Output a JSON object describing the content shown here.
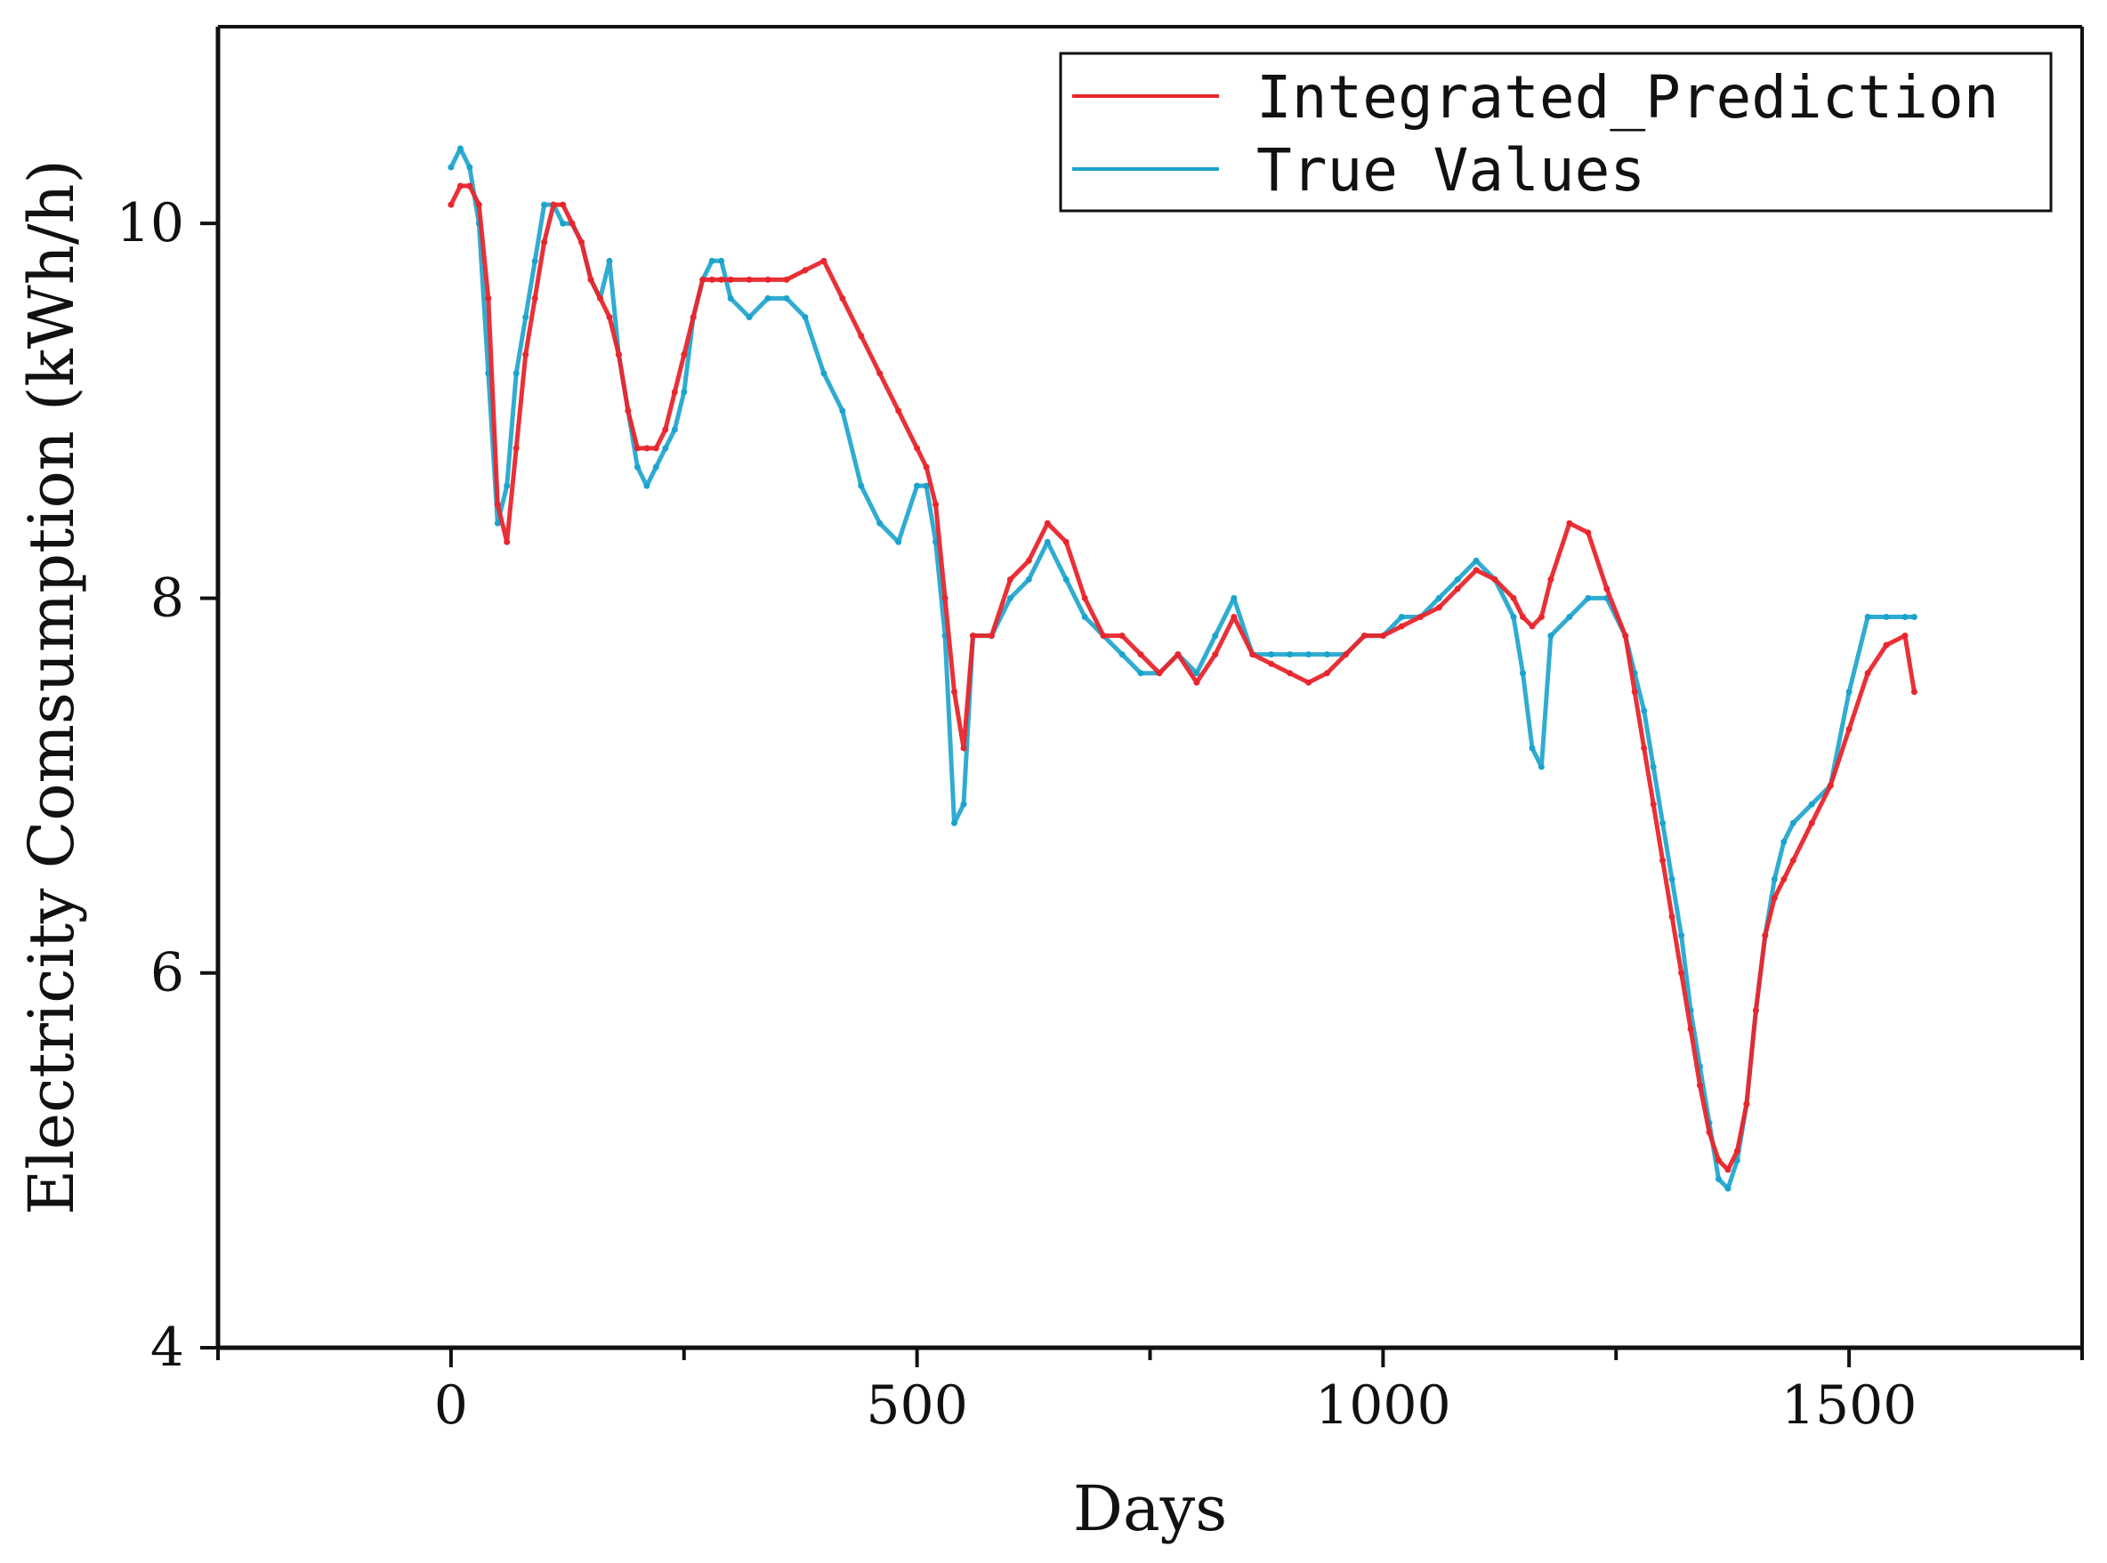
{
  "chart_data": {
    "type": "line",
    "title": "",
    "xlabel": "Days",
    "ylabel": "Electricity Comsumption (kWh/h)",
    "xlim": [
      -250,
      1750
    ],
    "ylim": [
      4,
      11.05
    ],
    "xticks": [
      0,
      500,
      1000,
      1500
    ],
    "yticks": [
      4,
      6,
      8,
      10
    ],
    "x_minor_ticks": [
      -250,
      250,
      750,
      1250,
      1750
    ],
    "grid": false,
    "legend_position": "top-right",
    "colors": {
      "Integrated_Prediction": "#e8262d",
      "True Values": "#1aa3cc",
      "frame": "#111111"
    },
    "series": [
      {
        "name": "True Values",
        "x": [
          0,
          10,
          20,
          30,
          40,
          50,
          60,
          70,
          80,
          90,
          100,
          110,
          120,
          130,
          140,
          150,
          160,
          170,
          180,
          190,
          200,
          210,
          220,
          230,
          240,
          250,
          260,
          270,
          280,
          290,
          300,
          320,
          340,
          360,
          380,
          400,
          420,
          440,
          460,
          480,
          500,
          510,
          520,
          530,
          540,
          550,
          560,
          580,
          600,
          620,
          640,
          660,
          680,
          700,
          720,
          740,
          760,
          780,
          800,
          820,
          840,
          860,
          880,
          900,
          920,
          940,
          960,
          980,
          1000,
          1020,
          1040,
          1060,
          1080,
          1100,
          1120,
          1140,
          1150,
          1160,
          1170,
          1180,
          1200,
          1220,
          1240,
          1260,
          1270,
          1280,
          1290,
          1300,
          1310,
          1320,
          1330,
          1340,
          1350,
          1360,
          1370,
          1380,
          1390,
          1400,
          1410,
          1420,
          1430,
          1440,
          1460,
          1480,
          1500,
          1520,
          1540,
          1560,
          1570
        ],
        "y": [
          10.3,
          10.4,
          10.3,
          10.0,
          9.2,
          8.4,
          8.6,
          9.2,
          9.5,
          9.8,
          10.1,
          10.1,
          10.0,
          10.0,
          9.9,
          9.7,
          9.6,
          9.8,
          9.3,
          9.0,
          8.7,
          8.6,
          8.7,
          8.8,
          8.9,
          9.1,
          9.5,
          9.7,
          9.8,
          9.8,
          9.6,
          9.5,
          9.6,
          9.6,
          9.5,
          9.2,
          9.0,
          8.6,
          8.4,
          8.3,
          8.6,
          8.6,
          8.3,
          7.8,
          6.8,
          6.9,
          7.8,
          7.8,
          8.0,
          8.1,
          8.3,
          8.1,
          7.9,
          7.8,
          7.7,
          7.6,
          7.6,
          7.7,
          7.6,
          7.8,
          8.0,
          7.7,
          7.7,
          7.7,
          7.7,
          7.7,
          7.7,
          7.8,
          7.8,
          7.9,
          7.9,
          8.0,
          8.1,
          8.2,
          8.1,
          7.9,
          7.6,
          7.2,
          7.1,
          7.8,
          7.9,
          8.0,
          8.0,
          7.8,
          7.6,
          7.4,
          7.1,
          6.8,
          6.5,
          6.2,
          5.8,
          5.5,
          5.2,
          4.9,
          4.85,
          5.0,
          5.3,
          5.8,
          6.2,
          6.5,
          6.7,
          6.8,
          6.9,
          7.0,
          7.5,
          7.9,
          7.9,
          7.9,
          7.9
        ]
      },
      {
        "name": "Integrated_Prediction",
        "x": [
          0,
          10,
          20,
          30,
          40,
          50,
          60,
          70,
          80,
          90,
          100,
          110,
          120,
          130,
          140,
          150,
          160,
          170,
          180,
          190,
          200,
          210,
          220,
          230,
          240,
          250,
          260,
          270,
          280,
          290,
          300,
          320,
          340,
          360,
          380,
          400,
          420,
          440,
          460,
          480,
          500,
          510,
          520,
          530,
          540,
          550,
          560,
          580,
          600,
          620,
          640,
          660,
          680,
          700,
          720,
          740,
          760,
          780,
          800,
          820,
          840,
          860,
          880,
          900,
          920,
          940,
          960,
          980,
          1000,
          1020,
          1040,
          1060,
          1080,
          1100,
          1120,
          1140,
          1150,
          1160,
          1170,
          1180,
          1200,
          1220,
          1240,
          1260,
          1270,
          1280,
          1290,
          1300,
          1310,
          1320,
          1330,
          1340,
          1350,
          1360,
          1370,
          1380,
          1390,
          1400,
          1410,
          1420,
          1430,
          1440,
          1460,
          1480,
          1500,
          1520,
          1540,
          1560,
          1570
        ],
        "y": [
          10.1,
          10.2,
          10.2,
          10.1,
          9.6,
          8.5,
          8.3,
          8.8,
          9.3,
          9.6,
          9.9,
          10.1,
          10.1,
          10.0,
          9.9,
          9.7,
          9.6,
          9.5,
          9.3,
          9.0,
          8.8,
          8.8,
          8.8,
          8.9,
          9.1,
          9.3,
          9.5,
          9.7,
          9.7,
          9.7,
          9.7,
          9.7,
          9.7,
          9.7,
          9.75,
          9.8,
          9.6,
          9.4,
          9.2,
          9.0,
          8.8,
          8.7,
          8.5,
          8.0,
          7.5,
          7.2,
          7.8,
          7.8,
          8.1,
          8.2,
          8.4,
          8.3,
          8.0,
          7.8,
          7.8,
          7.7,
          7.6,
          7.7,
          7.55,
          7.7,
          7.9,
          7.7,
          7.65,
          7.6,
          7.55,
          7.6,
          7.7,
          7.8,
          7.8,
          7.85,
          7.9,
          7.95,
          8.05,
          8.15,
          8.1,
          8.0,
          7.9,
          7.85,
          7.9,
          8.1,
          8.4,
          8.35,
          8.05,
          7.8,
          7.5,
          7.2,
          6.9,
          6.6,
          6.3,
          6.0,
          5.7,
          5.4,
          5.15,
          5.0,
          4.95,
          5.05,
          5.3,
          5.8,
          6.2,
          6.4,
          6.5,
          6.6,
          6.8,
          7.0,
          7.3,
          7.6,
          7.75,
          7.8,
          7.5
        ]
      }
    ]
  }
}
